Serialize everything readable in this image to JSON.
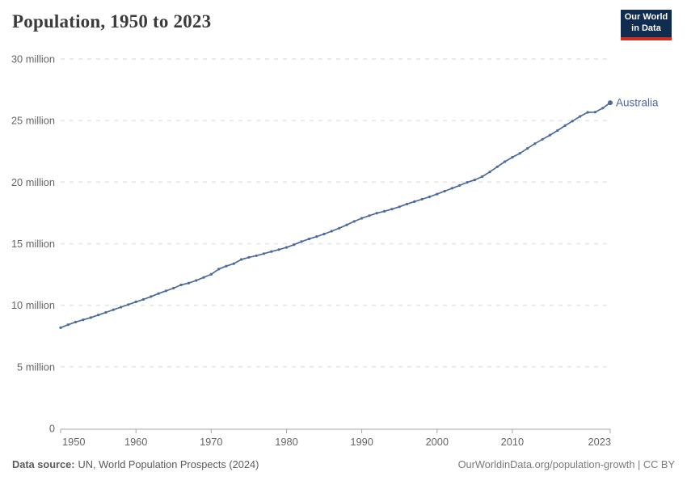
{
  "page": {
    "background_color": "#ffffff"
  },
  "header": {
    "title": "Population, 1950 to 2023",
    "logo": {
      "line1": "Our World",
      "line2": "in Data",
      "bg_color": "#102d50",
      "accent_color": "#d42b21",
      "text_color": "#ffffff"
    }
  },
  "chart_data": {
    "type": "line",
    "title": "Population, 1950 to 2023",
    "xlabel": "",
    "ylabel": "",
    "unit": "million people",
    "grid": "horizontal-dashed",
    "legend_position": "line-end-label",
    "xlim": [
      1950,
      2023
    ],
    "ylim": [
      0,
      30
    ],
    "x_ticks": [
      1950,
      1960,
      1970,
      1980,
      1990,
      2000,
      2010,
      2023
    ],
    "y_ticks": [
      {
        "value": 0,
        "label": "0"
      },
      {
        "value": 5,
        "label": "5 million"
      },
      {
        "value": 10,
        "label": "10 million"
      },
      {
        "value": 15,
        "label": "15 million"
      },
      {
        "value": 20,
        "label": "20 million"
      },
      {
        "value": 25,
        "label": "25 million"
      },
      {
        "value": 30,
        "label": "30 million"
      }
    ],
    "colors": {
      "line": "#4C6A9C",
      "gridline": "#e9e9e9",
      "axis": "#a4a4a4",
      "tick_label": "#666666"
    },
    "series": [
      {
        "name": "Australia",
        "label_color": "#4C6A9C",
        "x": [
          1950,
          1951,
          1952,
          1953,
          1954,
          1955,
          1956,
          1957,
          1958,
          1959,
          1960,
          1961,
          1962,
          1963,
          1964,
          1965,
          1966,
          1967,
          1968,
          1969,
          1970,
          1971,
          1972,
          1973,
          1974,
          1975,
          1976,
          1977,
          1978,
          1979,
          1980,
          1981,
          1982,
          1983,
          1984,
          1985,
          1986,
          1987,
          1988,
          1989,
          1990,
          1991,
          1992,
          1993,
          1994,
          1995,
          1996,
          1997,
          1998,
          1999,
          2000,
          2001,
          2002,
          2003,
          2004,
          2005,
          2006,
          2007,
          2008,
          2009,
          2010,
          2011,
          2012,
          2013,
          2014,
          2015,
          2016,
          2017,
          2018,
          2019,
          2020,
          2021,
          2022,
          2023
        ],
        "values_millions": [
          8.18,
          8.42,
          8.64,
          8.82,
          9.0,
          9.21,
          9.42,
          9.64,
          9.85,
          10.06,
          10.28,
          10.48,
          10.71,
          10.95,
          11.17,
          11.39,
          11.65,
          11.8,
          12.01,
          12.26,
          12.51,
          12.94,
          13.18,
          13.38,
          13.72,
          13.89,
          14.03,
          14.19,
          14.36,
          14.52,
          14.7,
          14.92,
          15.18,
          15.39,
          15.58,
          15.79,
          16.02,
          16.26,
          16.53,
          16.81,
          17.07,
          17.28,
          17.48,
          17.63,
          17.81,
          18.0,
          18.22,
          18.42,
          18.61,
          18.81,
          19.03,
          19.27,
          19.5,
          19.73,
          19.98,
          20.18,
          20.45,
          20.83,
          21.25,
          21.66,
          22.02,
          22.34,
          22.73,
          23.13,
          23.48,
          23.82,
          24.19,
          24.59,
          24.96,
          25.34,
          25.67,
          25.69,
          26.01,
          26.45
        ]
      }
    ]
  },
  "footer": {
    "source_label": "Data source:",
    "source_text": "UN, World Population Prospects (2024)",
    "link_text": "OurWorldinData.org/population-growth",
    "separator": " | ",
    "license": "CC BY"
  }
}
